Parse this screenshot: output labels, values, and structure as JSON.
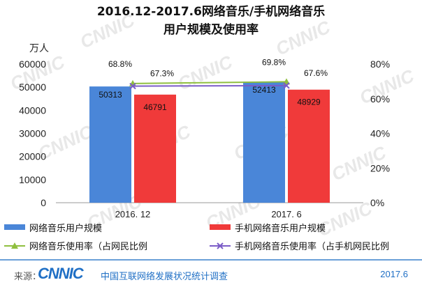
{
  "chart_data": {
    "type": "bar",
    "title_line1": "2016.12-2017.6网络音乐/手机网络音乐",
    "title_line2": "用户规模及使用率",
    "y_unit": "万人",
    "categories": [
      "2016. 12",
      "2017. 6"
    ],
    "ylim": [
      0,
      60000
    ],
    "yticks": [
      "0",
      "10000",
      "20000",
      "30000",
      "40000",
      "50000",
      "60000"
    ],
    "y2lim": [
      0,
      80
    ],
    "y2ticks": [
      "0%",
      "20%",
      "40%",
      "60%",
      "80%"
    ],
    "bar_series": [
      {
        "name": "网络音乐用户规模",
        "values": [
          50313,
          52413
        ],
        "labels": [
          "50313",
          "52413"
        ],
        "color": "#4a86d8"
      },
      {
        "name": "手机网络音乐用户规模",
        "values": [
          46791,
          48929
        ],
        "labels": [
          "46791",
          "48929"
        ],
        "color": "#f03a3a"
      }
    ],
    "line_series": [
      {
        "name": "网络音乐使用率（占网民比例",
        "values": [
          68.8,
          69.8
        ],
        "labels": [
          "68.8%",
          "69.8%"
        ],
        "color": "#8fbf3f",
        "marker": "triangle"
      },
      {
        "name": "手机网络音乐使用率（占手机网民比例",
        "values": [
          67.3,
          67.6
        ],
        "labels": [
          "67.3%",
          "67.6%"
        ],
        "color": "#7b5cc7",
        "marker": "x"
      }
    ],
    "grid": false,
    "legend_position": "bottom"
  },
  "watermark": "CNNIC",
  "footer": {
    "source_label": "来源：",
    "logo": "CNNIC",
    "org": "中国互联网络发展状况统计调查",
    "date": "2017.6"
  }
}
